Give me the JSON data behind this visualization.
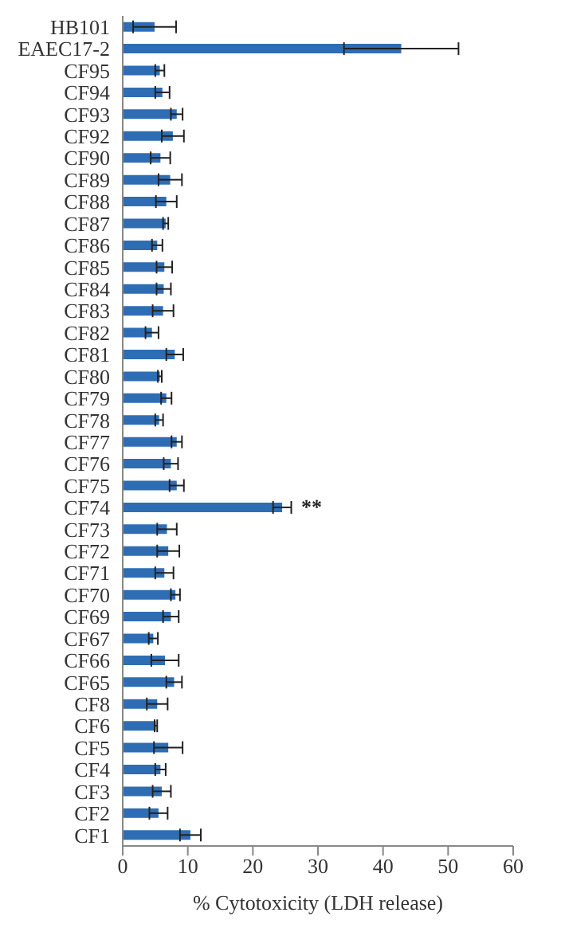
{
  "chart_data": {
    "type": "bar",
    "orientation": "horizontal",
    "xlabel": "% Cytotoxicity (LDH release)",
    "categories": [
      "HB101",
      "EAEC17-2",
      "CF95",
      "CF94",
      "CF93",
      "CF92",
      "CF90",
      "CF89",
      "CF88",
      "CF87",
      "CF86",
      "CF85",
      "CF84",
      "CF83",
      "CF82",
      "CF81",
      "CF80",
      "CF79",
      "CF78",
      "CF77",
      "CF76",
      "CF75",
      "CF74",
      "CF73",
      "CF72",
      "CF71",
      "CF70",
      "CF69",
      "CF67",
      "CF66",
      "CF65",
      "CF8",
      "CF6",
      "CF5",
      "CF4",
      "CF3",
      "CF2",
      "CF1"
    ],
    "values": [
      4.9,
      42.8,
      5.7,
      6.1,
      8.3,
      7.7,
      5.8,
      7.3,
      6.7,
      6.6,
      5.3,
      6.4,
      6.3,
      6.2,
      4.5,
      8.0,
      5.7,
      6.7,
      5.6,
      8.3,
      7.4,
      8.3,
      24.5,
      6.8,
      7.0,
      6.4,
      8.1,
      7.4,
      4.7,
      6.5,
      7.9,
      5.3,
      5.1,
      7.0,
      5.8,
      6.0,
      5.5,
      10.4
    ],
    "errors": [
      3.3,
      8.8,
      0.7,
      1.1,
      0.9,
      1.7,
      1.5,
      1.8,
      1.6,
      0.4,
      0.8,
      1.2,
      1.1,
      1.6,
      1.0,
      1.3,
      0.3,
      0.8,
      0.6,
      0.8,
      1.1,
      1.1,
      1.4,
      1.5,
      1.7,
      1.4,
      0.7,
      1.2,
      0.7,
      2.1,
      1.2,
      1.6,
      0.2,
      2.2,
      0.8,
      1.4,
      1.4,
      1.6
    ],
    "color": "#2e6db4",
    "xlim": [
      0,
      60
    ],
    "xticks": [
      0,
      10,
      20,
      30,
      40,
      50,
      60
    ],
    "annotations": [
      {
        "text": "**",
        "x": 24.5,
        "y": "CF74"
      }
    ]
  }
}
